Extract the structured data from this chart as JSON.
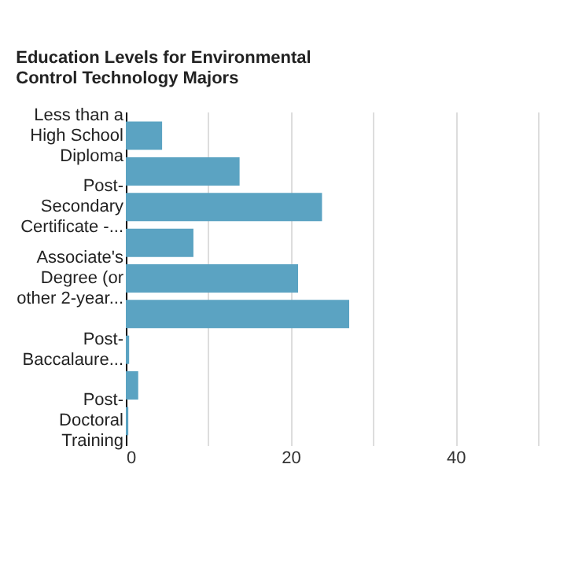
{
  "chart_data": {
    "type": "bar",
    "orientation": "horizontal",
    "title": "Education Levels for Environmental Control Technology Majors",
    "categories": [
      "Less than a High School Diploma",
      null,
      "Post-Secondary Certificate -...",
      null,
      "Associate's Degree (or other 2-year...",
      null,
      "Post-Baccalaure...",
      null,
      "Post-Doctoral Training"
    ],
    "values": [
      4.4,
      13.8,
      23.8,
      8.2,
      20.9,
      27.1,
      0.4,
      1.5,
      0.3
    ],
    "color": "#5ba3c2",
    "xlim": [
      0,
      50
    ],
    "xticks": [
      0,
      {
        "value": 10,
        "label": null
      },
      20,
      {
        "value": 30,
        "label": null
      },
      40,
      {
        "value": 50,
        "label": null
      }
    ],
    "grid": "x"
  }
}
